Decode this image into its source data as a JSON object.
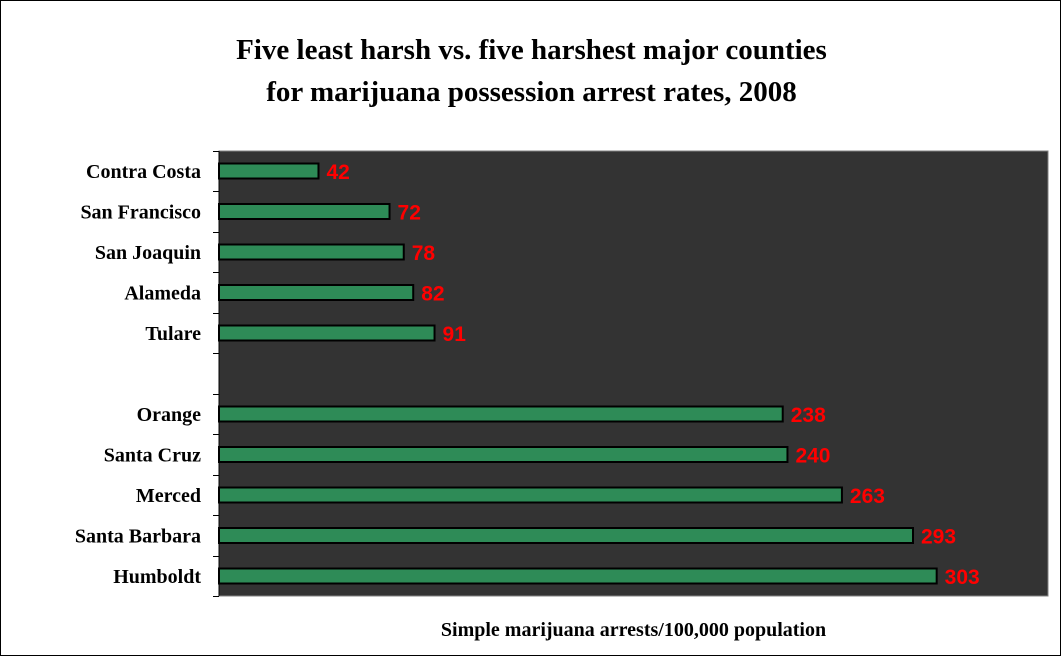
{
  "chart_data": {
    "type": "bar",
    "orientation": "horizontal",
    "title_lines": [
      "Five least harsh vs. five harshest major counties",
      "for marijuana possession arrest rates, 2008"
    ],
    "xlabel": "Simple marijuana arrests/100,000 population",
    "ylabel": "",
    "xlim": [
      0,
      350
    ],
    "categories": [
      "Contra Costa",
      "San Francisco",
      "San Joaquin",
      "Alameda",
      "Tulare",
      "",
      "Orange",
      "Santa Cruz",
      "Merced",
      "Santa Barbara",
      "Humboldt"
    ],
    "values": [
      42,
      72,
      78,
      82,
      91,
      null,
      238,
      240,
      263,
      293,
      303
    ],
    "data_labels": [
      "42",
      "72",
      "78",
      "82",
      "91",
      "",
      "238",
      "240",
      "263",
      "293",
      "303"
    ],
    "grid": false,
    "legend": "none"
  },
  "colors": {
    "plot_background": "#333333",
    "bar_fill": "#2e8b57",
    "bar_stroke": "#000000",
    "value_label": "#ff0000"
  }
}
